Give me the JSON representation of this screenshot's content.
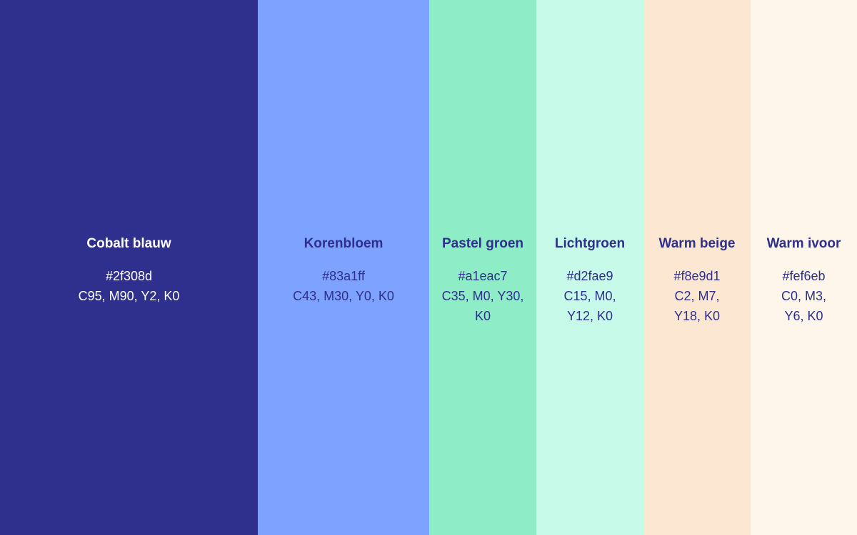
{
  "swatches": [
    {
      "name": "Cobalt blauw",
      "hex": "#2f308d",
      "cmyk": "C95, M90, Y2, K0",
      "background": "#2f308d",
      "text_color": "#ffffff"
    },
    {
      "name": "Korenbloem",
      "hex": "#83a1ff",
      "cmyk": "C43, M30, Y0, K0",
      "background": "#7ea2ff",
      "text_color": "#2f308d"
    },
    {
      "name": "Pastel groen",
      "hex": "#a1eac7",
      "cmyk": "C35, M0, Y30, K0",
      "background": "#8eecc7",
      "text_color": "#2f308d"
    },
    {
      "name": "Lichtgroen",
      "hex": "#d2fae9",
      "cmyk": "C15, M0, Y12, K0",
      "background": "#c8fae9",
      "text_color": "#2f308d"
    },
    {
      "name": "Warm beige",
      "hex": "#f8e9d1",
      "cmyk": "C2, M7, Y18, K0",
      "background": "#fce8d2",
      "text_color": "#2f308d"
    },
    {
      "name": "Warm ivoor",
      "hex": "#fef6eb",
      "cmyk": "C0, M3, Y6, K0",
      "background": "#fef6ea",
      "text_color": "#2f308d"
    }
  ]
}
